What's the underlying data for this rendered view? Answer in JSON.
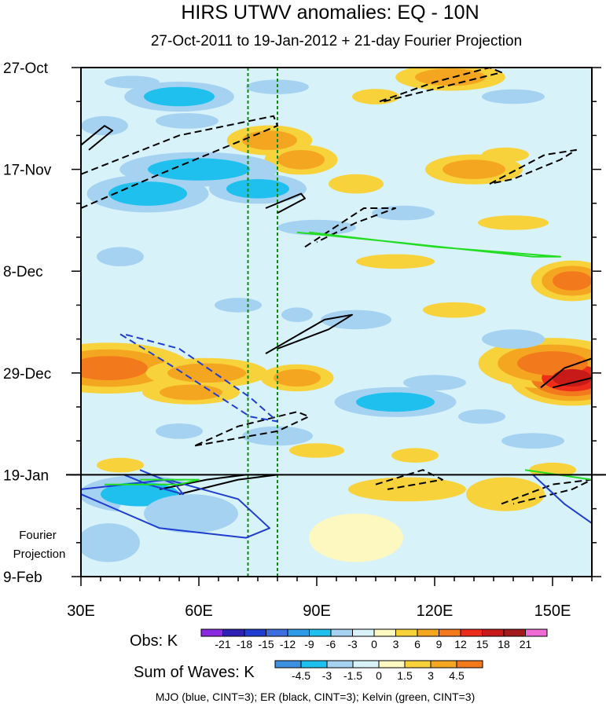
{
  "chart_data": {
    "type": "heatmap",
    "title": "HIRS UTWV anomalies: EQ - 10N",
    "subtitle": "27-Oct-2011 to 19-Jan-2012 + 21-day Fourier Projection",
    "x_axis": {
      "range": [
        30,
        160
      ],
      "ticks": [
        30,
        60,
        90,
        120,
        150
      ],
      "tick_labels": [
        "30E",
        "60E",
        "90E",
        "120E",
        "150E"
      ]
    },
    "y_axis": {
      "range_days": [
        0,
        105
      ],
      "ticks": [
        0,
        21,
        42,
        63,
        84,
        105
      ],
      "tick_labels": [
        "27-Oct",
        "17-Nov",
        "8-Dec",
        "29-Dec",
        "19-Jan",
        "9-Feb"
      ],
      "reversed": true
    },
    "observation_end_day": 84,
    "projection_label_lines": [
      "Fourier",
      "Projection"
    ],
    "reference_longitudes": [
      72.5,
      80
    ],
    "obs_colorbar": {
      "label": "Obs: K",
      "levels": [
        "-21",
        "-18",
        "-15",
        "-12",
        "-9",
        "-6",
        "-3",
        "0",
        "3",
        "6",
        "9",
        "12",
        "15",
        "18",
        "21"
      ],
      "colors": [
        "#8a2be2",
        "#2e1fb5",
        "#1f3ed1",
        "#3d6fe0",
        "#2f9be8",
        "#20c0ee",
        "#a6d2f2",
        "#d8f2fa",
        "#fdf7c0",
        "#f8d23a",
        "#f5a621",
        "#f3791d",
        "#ee2c1c",
        "#c91a1a",
        "#a21a1a",
        "#f06ad6"
      ]
    },
    "waves_colorbar": {
      "label": "Sum of Waves: K",
      "levels": [
        "-4.5",
        "-3",
        "-1.5",
        "0",
        "1.5",
        "3",
        "4.5"
      ],
      "colors": [
        "#3d8fe0",
        "#20c0ee",
        "#a6d2f2",
        "#d8f2fa",
        "#fdf7c0",
        "#f8d23a",
        "#f5a621",
        "#f3791d"
      ]
    },
    "wave_series": [
      {
        "name": "MJO",
        "color": "#1f3ed1"
      },
      {
        "name": "ER",
        "color": "#000000"
      },
      {
        "name": "Kelvin",
        "color": "#22dd22"
      }
    ],
    "footer": "MJO (blue, CINT=3); ER (black, CINT=3); Kelvin (green, CINT=3)",
    "obs_anomalies": [
      {
        "lon": 43,
        "day": 3,
        "value": -6,
        "sx": 7,
        "sy": 1.3
      },
      {
        "lon": 55,
        "day": 6,
        "value": -8,
        "sx": 9,
        "sy": 2.0
      },
      {
        "lon": 80,
        "day": 4,
        "value": -4,
        "sx": 8,
        "sy": 1.5
      },
      {
        "lon": 124,
        "day": 2,
        "value": 7,
        "sx": 9,
        "sy": 1.8
      },
      {
        "lon": 105,
        "day": 6,
        "value": 4,
        "sx": 6,
        "sy": 1.6
      },
      {
        "lon": 140,
        "day": 6,
        "value": -4,
        "sx": 8,
        "sy": 1.5
      },
      {
        "lon": 36,
        "day": 12,
        "value": -5,
        "sx": 6,
        "sy": 2.0
      },
      {
        "lon": 57,
        "day": 11,
        "value": -5,
        "sx": 8,
        "sy": 1.6
      },
      {
        "lon": 78,
        "day": 15,
        "value": 8,
        "sx": 7,
        "sy": 2.0
      },
      {
        "lon": 86,
        "day": 19,
        "value": 6,
        "sx": 6,
        "sy": 2.0
      },
      {
        "lon": 60,
        "day": 21,
        "value": -7,
        "sx": 13,
        "sy": 2.3
      },
      {
        "lon": 47,
        "day": 26,
        "value": -8,
        "sx": 10,
        "sy": 2.5
      },
      {
        "lon": 75,
        "day": 25,
        "value": -9,
        "sx": 8,
        "sy": 2.0
      },
      {
        "lon": 100,
        "day": 24,
        "value": 5,
        "sx": 7,
        "sy": 2.0
      },
      {
        "lon": 130,
        "day": 21,
        "value": 6,
        "sx": 8,
        "sy": 2.0
      },
      {
        "lon": 138,
        "day": 18,
        "value": 5,
        "sx": 6,
        "sy": 1.5
      },
      {
        "lon": 90,
        "day": 33,
        "value": -5,
        "sx": 10,
        "sy": 1.6
      },
      {
        "lon": 112,
        "day": 30,
        "value": -4,
        "sx": 8,
        "sy": 1.5
      },
      {
        "lon": 140,
        "day": 32,
        "value": 4,
        "sx": 9,
        "sy": 1.5
      },
      {
        "lon": 40,
        "day": 39,
        "value": -6,
        "sx": 6,
        "sy": 2.0
      },
      {
        "lon": 110,
        "day": 40,
        "value": 4,
        "sx": 10,
        "sy": 1.5
      },
      {
        "lon": 155,
        "day": 44,
        "value": 9,
        "sx": 5,
        "sy": 2.0
      },
      {
        "lon": 70,
        "day": 49,
        "value": -6,
        "sx": 6,
        "sy": 1.5
      },
      {
        "lon": 100,
        "day": 52,
        "value": -5,
        "sx": 9,
        "sy": 2.0
      },
      {
        "lon": 85,
        "day": 51,
        "value": -4,
        "sx": 4,
        "sy": 1.5
      },
      {
        "lon": 125,
        "day": 50,
        "value": 5,
        "sx": 8,
        "sy": 1.6
      },
      {
        "lon": 140,
        "day": 56,
        "value": -5,
        "sx": 8,
        "sy": 2.0
      },
      {
        "lon": 37,
        "day": 62,
        "value": 11,
        "sx": 10,
        "sy": 2.5
      },
      {
        "lon": 62,
        "day": 63,
        "value": 7,
        "sx": 10,
        "sy": 2.0
      },
      {
        "lon": 85,
        "day": 64,
        "value": 6,
        "sx": 6,
        "sy": 1.8
      },
      {
        "lon": 150,
        "day": 61,
        "value": 11,
        "sx": 9,
        "sy": 2.5
      },
      {
        "lon": 155,
        "day": 64,
        "value": 15,
        "sx": 5,
        "sy": 1.8
      },
      {
        "lon": 120,
        "day": 65,
        "value": -4,
        "sx": 8,
        "sy": 1.6
      },
      {
        "lon": 58,
        "day": 67,
        "value": 6,
        "sx": 8,
        "sy": 1.6
      },
      {
        "lon": 110,
        "day": 69,
        "value": -7,
        "sx": 10,
        "sy": 2.0
      },
      {
        "lon": 132,
        "day": 72,
        "value": -4,
        "sx": 6,
        "sy": 1.5
      },
      {
        "lon": 55,
        "day": 75,
        "value": -5,
        "sx": 6,
        "sy": 1.6
      },
      {
        "lon": 80,
        "day": 76,
        "value": -6,
        "sx": 9,
        "sy": 2.0
      },
      {
        "lon": 90,
        "day": 79,
        "value": 4,
        "sx": 7,
        "sy": 1.5
      },
      {
        "lon": 145,
        "day": 77,
        "value": -5,
        "sx": 8,
        "sy": 1.6
      },
      {
        "lon": 115,
        "day": 80,
        "value": 5,
        "sx": 6,
        "sy": 1.5
      },
      {
        "lon": 40,
        "day": 82,
        "value": 4,
        "sx": 6,
        "sy": 1.5
      },
      {
        "lon": 150,
        "day": 83,
        "value": 5,
        "sx": 6,
        "sy": 1.5
      }
    ],
    "projection_anomalies": [
      {
        "lon": 45,
        "day": 88,
        "value": -4,
        "sx": 10,
        "sy": 2.5
      },
      {
        "lon": 58,
        "day": 92,
        "value": -3,
        "sx": 12,
        "sy": 4
      },
      {
        "lon": 37,
        "day": 98,
        "value": -1.6,
        "sx": 8,
        "sy": 4
      },
      {
        "lon": 113,
        "day": 87,
        "value": 2.5,
        "sx": 15,
        "sy": 2.5
      },
      {
        "lon": 138,
        "day": 88,
        "value": 1.8,
        "sx": 10,
        "sy": 3.5
      },
      {
        "lon": 100,
        "day": 97,
        "value": 1.2,
        "sx": 12,
        "sy": 5
      },
      {
        "lon": 150,
        "day": 98,
        "value": -1.2,
        "sx": 8,
        "sy": 4
      }
    ],
    "wave_contours": [
      {
        "wave": "ER",
        "dashed": true,
        "points": [
          [
            30,
            29
          ],
          [
            50,
            22
          ],
          [
            80,
            12
          ],
          [
            79,
            10
          ],
          [
            55,
            14
          ],
          [
            30,
            22
          ]
        ]
      },
      {
        "wave": "ER",
        "dashed": false,
        "points": [
          [
            30,
            16
          ],
          [
            36,
            12
          ],
          [
            38,
            13
          ],
          [
            32,
            17
          ]
        ]
      },
      {
        "wave": "ER",
        "dashed": true,
        "points": [
          [
            106,
            7
          ],
          [
            120,
            3
          ],
          [
            134,
            0
          ],
          [
            137,
            1
          ],
          [
            122,
            4
          ],
          [
            107,
            7
          ]
        ]
      },
      {
        "wave": "ER",
        "dashed": true,
        "points": [
          [
            134,
            24
          ],
          [
            148,
            18
          ],
          [
            156,
            17
          ],
          [
            152,
            19
          ],
          [
            140,
            23
          ],
          [
            134,
            24
          ]
        ]
      },
      {
        "wave": "ER",
        "dashed": false,
        "points": [
          [
            77,
            29
          ],
          [
            86,
            26
          ],
          [
            87,
            27
          ],
          [
            80,
            30
          ]
        ]
      },
      {
        "wave": "ER",
        "dashed": true,
        "points": [
          [
            87,
            37
          ],
          [
            102,
            29
          ],
          [
            110,
            29
          ],
          [
            100,
            32
          ],
          [
            90,
            36
          ]
        ]
      },
      {
        "wave": "ER",
        "dashed": false,
        "points": [
          [
            77,
            59
          ],
          [
            92,
            52
          ],
          [
            99,
            51
          ],
          [
            93,
            54
          ],
          [
            80,
            58
          ]
        ]
      },
      {
        "wave": "ER",
        "dashed": true,
        "points": [
          [
            59,
            78
          ],
          [
            80,
            75
          ],
          [
            88,
            72
          ],
          [
            85,
            71
          ],
          [
            70,
            74
          ],
          [
            59,
            78
          ]
        ]
      },
      {
        "wave": "ER",
        "dashed": false,
        "points": [
          [
            50,
            87
          ],
          [
            62,
            85
          ],
          [
            72,
            84
          ],
          [
            80,
            84
          ],
          [
            70,
            85
          ],
          [
            55,
            88
          ]
        ]
      },
      {
        "wave": "ER",
        "dashed": true,
        "points": [
          [
            105,
            86
          ],
          [
            117,
            83
          ],
          [
            122,
            85
          ],
          [
            108,
            87
          ]
        ]
      },
      {
        "wave": "ER",
        "dashed": true,
        "points": [
          [
            137,
            90
          ],
          [
            150,
            86
          ],
          [
            160,
            85
          ],
          [
            155,
            87
          ],
          [
            140,
            90
          ]
        ]
      },
      {
        "wave": "ER",
        "dashed": false,
        "points": [
          [
            147,
            66
          ],
          [
            153,
            62
          ],
          [
            160,
            60
          ],
          [
            160,
            64
          ],
          [
            150,
            66
          ]
        ]
      },
      {
        "wave": "MJO",
        "dashed": true,
        "points": [
          [
            40,
            55
          ],
          [
            54,
            62
          ],
          [
            73,
            72
          ],
          [
            80,
            73
          ],
          [
            73,
            68
          ],
          [
            55,
            58
          ],
          [
            41,
            55
          ]
        ]
      },
      {
        "wave": "MJO",
        "dashed": false,
        "points": [
          [
            30,
            88
          ],
          [
            50,
            95
          ],
          [
            72,
            97
          ],
          [
            78,
            95
          ],
          [
            70,
            89
          ],
          [
            52,
            85
          ],
          [
            30,
            87
          ]
        ]
      },
      {
        "wave": "MJO",
        "dashed": false,
        "points": [
          [
            41,
            84
          ],
          [
            47,
            86
          ],
          [
            56,
            88
          ],
          [
            54,
            86
          ],
          [
            45,
            83
          ]
        ]
      },
      {
        "wave": "MJO",
        "dashed": false,
        "points": [
          [
            145,
            84
          ],
          [
            153,
            90
          ],
          [
            160,
            94
          ]
        ]
      },
      {
        "wave": "Kelvin",
        "dashed": false,
        "points": [
          [
            85,
            34
          ],
          [
            110,
            36
          ],
          [
            145,
            39
          ],
          [
            152,
            39
          ],
          [
            120,
            37
          ],
          [
            88,
            34
          ]
        ]
      },
      {
        "wave": "Kelvin",
        "dashed": false,
        "points": [
          [
            36,
            86
          ],
          [
            55,
            86
          ],
          [
            60,
            85
          ],
          [
            45,
            85
          ]
        ]
      },
      {
        "wave": "Kelvin",
        "dashed": false,
        "points": [
          [
            143,
            83
          ],
          [
            160,
            85
          ]
        ]
      }
    ]
  }
}
